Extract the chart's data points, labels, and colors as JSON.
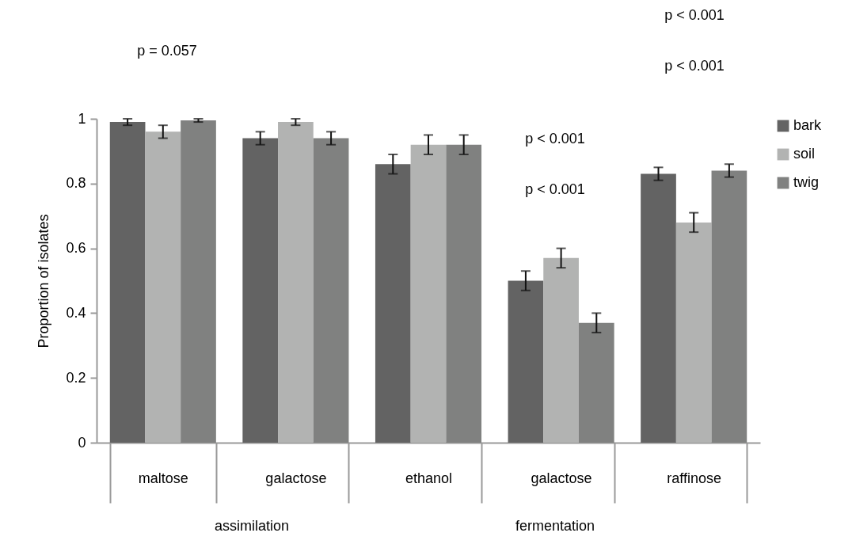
{
  "chart_data": {
    "type": "bar",
    "ylabel": "Proportion of isolates",
    "categories": [
      "maltose",
      "galactose",
      "ethanol",
      "galactose",
      "raffinose"
    ],
    "series": [
      {
        "name": "bark",
        "color": "#636363",
        "values": [
          0.99,
          0.94,
          0.86,
          0.5,
          0.83
        ],
        "errors": [
          0.01,
          0.02,
          0.03,
          0.03,
          0.02
        ]
      },
      {
        "name": "soil",
        "color": "#b2b3b2",
        "values": [
          0.96,
          0.99,
          0.92,
          0.57,
          0.68
        ],
        "errors": [
          0.02,
          0.01,
          0.03,
          0.03,
          0.03
        ]
      },
      {
        "name": "twig",
        "color": "#808180",
        "values": [
          0.995,
          0.94,
          0.92,
          0.37,
          0.84
        ],
        "errors": [
          0.005,
          0.02,
          0.03,
          0.03,
          0.02
        ]
      }
    ],
    "ylim": [
      0,
      1
    ],
    "yticks": [
      0,
      0.2,
      0.4,
      0.6,
      0.8,
      1
    ],
    "legend": "right",
    "grid": false,
    "annotations": [
      "p = 0.057",
      "p < 0.001",
      "p < 0.001",
      "p < 0.001",
      "p < 0.001",
      "assimilation",
      "fermentation"
    ]
  }
}
